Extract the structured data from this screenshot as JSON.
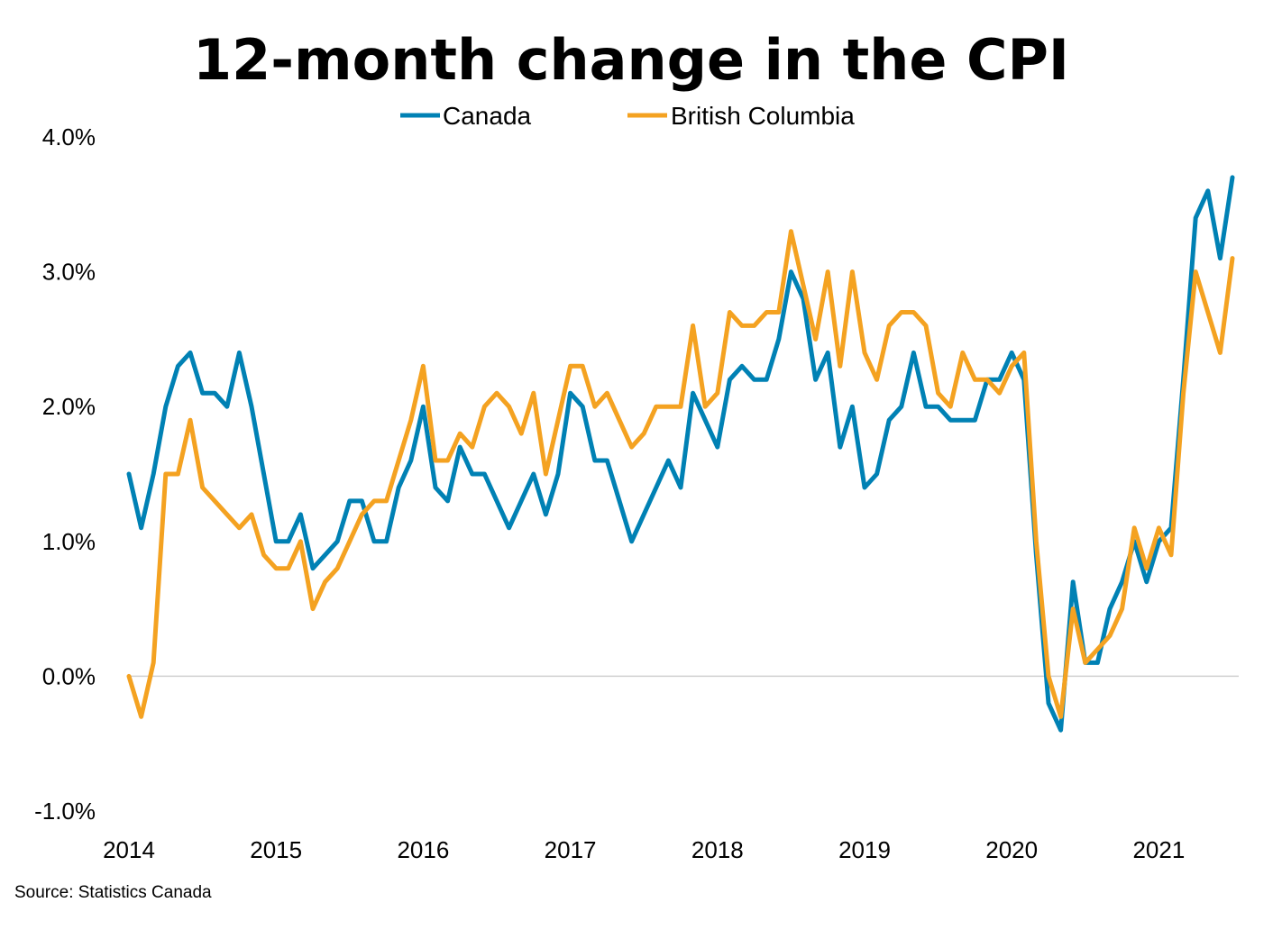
{
  "source": "Source: Statistics Canada",
  "colors": {
    "canada": "#0081B4",
    "bc": "#F4A221",
    "zero_line": "#d0d0d0"
  },
  "chart_data": {
    "type": "line",
    "title": "12-month change in the CPI",
    "xlabel": "",
    "ylabel": "",
    "ylim": [
      -1.0,
      4.0
    ],
    "y_ticks": [
      "4.0%",
      "3.0%",
      "2.0%",
      "1.0%",
      "0.0%",
      "-1.0%"
    ],
    "y_tick_values": [
      4.0,
      3.0,
      2.0,
      1.0,
      0.0,
      -1.0
    ],
    "x_ticks": [
      "2014",
      "2015",
      "2016",
      "2017",
      "2018",
      "2019",
      "2020",
      "2021"
    ],
    "x_start": "2014-01",
    "x_end": "2021-07",
    "grid": false,
    "legend_position": "top-center",
    "series": [
      {
        "name": "Canada",
        "color": "#0081B4",
        "values": [
          1.5,
          1.1,
          1.5,
          2.0,
          2.3,
          2.4,
          2.1,
          2.1,
          2.0,
          2.4,
          2.0,
          1.5,
          1.0,
          1.0,
          1.2,
          0.8,
          0.9,
          1.0,
          1.3,
          1.3,
          1.0,
          1.0,
          1.4,
          1.6,
          2.0,
          1.4,
          1.3,
          1.7,
          1.5,
          1.5,
          1.3,
          1.1,
          1.3,
          1.5,
          1.2,
          1.5,
          2.1,
          2.0,
          1.6,
          1.6,
          1.3,
          1.0,
          1.2,
          1.4,
          1.6,
          1.4,
          2.1,
          1.9,
          1.7,
          2.2,
          2.3,
          2.2,
          2.2,
          2.5,
          3.0,
          2.8,
          2.2,
          2.4,
          1.7,
          2.0,
          1.4,
          1.5,
          1.9,
          2.0,
          2.4,
          2.0,
          2.0,
          1.9,
          1.9,
          1.9,
          2.2,
          2.2,
          2.4,
          2.2,
          0.9,
          -0.2,
          -0.4,
          0.7,
          0.1,
          0.1,
          0.5,
          0.7,
          1.0,
          0.7,
          1.0,
          1.1,
          2.2,
          3.4,
          3.6,
          3.1,
          3.7
        ]
      },
      {
        "name": "British Columbia",
        "color": "#F4A221",
        "values": [
          0.0,
          -0.3,
          0.1,
          1.5,
          1.5,
          1.9,
          1.4,
          1.3,
          1.2,
          1.1,
          1.2,
          0.9,
          0.8,
          0.8,
          1.0,
          0.5,
          0.7,
          0.8,
          1.0,
          1.2,
          1.3,
          1.3,
          1.6,
          1.9,
          2.3,
          1.6,
          1.6,
          1.8,
          1.7,
          2.0,
          2.1,
          2.0,
          1.8,
          2.1,
          1.5,
          1.9,
          2.3,
          2.3,
          2.0,
          2.1,
          1.9,
          1.7,
          1.8,
          2.0,
          2.0,
          2.0,
          2.6,
          2.0,
          2.1,
          2.7,
          2.6,
          2.6,
          2.7,
          2.7,
          3.3,
          2.9,
          2.5,
          3.0,
          2.3,
          3.0,
          2.4,
          2.2,
          2.6,
          2.7,
          2.7,
          2.6,
          2.1,
          2.0,
          2.4,
          2.2,
          2.2,
          2.1,
          2.3,
          2.4,
          1.0,
          0.0,
          -0.3,
          0.5,
          0.1,
          0.2,
          0.3,
          0.5,
          1.1,
          0.8,
          1.1,
          0.9,
          2.1,
          3.0,
          2.7,
          2.4,
          3.1
        ]
      }
    ]
  }
}
